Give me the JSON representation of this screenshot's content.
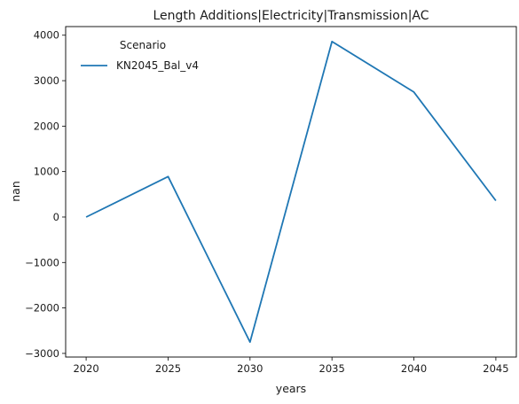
{
  "chart_data": {
    "type": "line",
    "title": "Length Additions|Electricity|Transmission|AC",
    "xlabel": "years",
    "ylabel": "nan",
    "x": [
      2020,
      2025,
      2030,
      2035,
      2040,
      2045
    ],
    "series": [
      {
        "name": "KN2045_Bal_v4",
        "color": "#1f77b4",
        "values": [
          0,
          890,
          -2750,
          3860,
          2750,
          360
        ]
      }
    ],
    "xticks": [
      2020,
      2025,
      2030,
      2035,
      2040,
      2045
    ],
    "yticks": [
      -3000,
      -2000,
      -1000,
      0,
      1000,
      2000,
      3000,
      4000
    ],
    "xlim": [
      2018.75,
      2046.25
    ],
    "ylim": [
      -3080,
      4190
    ],
    "legend": {
      "title": "Scenario",
      "placement": "upper-left"
    },
    "grid": false
  }
}
